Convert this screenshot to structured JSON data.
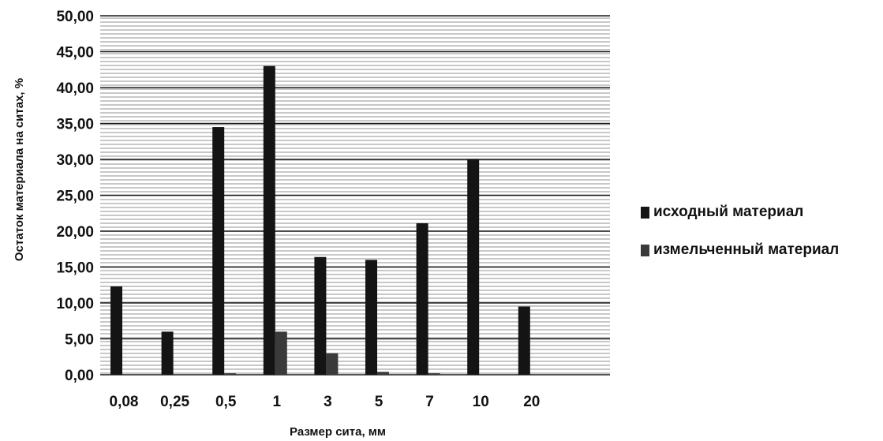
{
  "chart_data": {
    "type": "bar",
    "title": "",
    "xlabel": "Размер сита, мм",
    "ylabel": "Остаток материала на ситах, %",
    "categories": [
      "0,08",
      "0,25",
      "0,5",
      "1",
      "3",
      "5",
      "7",
      "10",
      "20"
    ],
    "ylim": [
      0,
      50
    ],
    "y_ticks": [
      "0,00",
      "5,00",
      "10,00",
      "15,00",
      "20,00",
      "25,00",
      "30,00",
      "35,00",
      "40,00",
      "45,00",
      "50,00"
    ],
    "grid": true,
    "legend_position": "right",
    "series": [
      {
        "name": "исходный материал",
        "color": "#141414",
        "values": [
          12.3,
          6.0,
          34.5,
          43.0,
          16.4,
          16.0,
          21.1,
          30.0,
          9.5
        ]
      },
      {
        "name": "измельченный материал",
        "color": "#3a3a3a",
        "values": [
          0.0,
          0.0,
          0.2,
          6.0,
          3.0,
          0.4,
          0.2,
          0.0,
          0.0
        ]
      }
    ]
  }
}
